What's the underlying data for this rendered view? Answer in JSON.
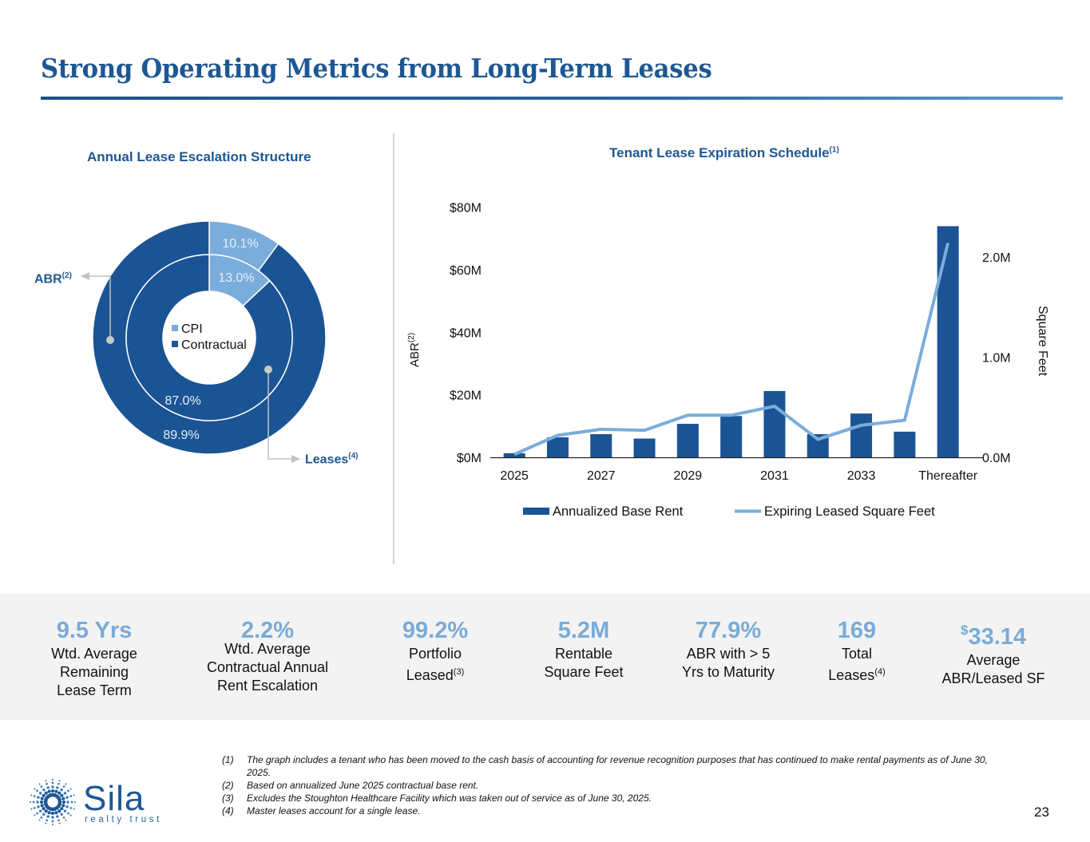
{
  "page": {
    "title": "Strong Operating Metrics from Long-Term Leases",
    "page_number": "23",
    "brand": {
      "name": "Sila",
      "tagline": "realty trust"
    },
    "colors": {
      "primary": "#1d5794",
      "dark_blue": "#1b5494",
      "light_blue": "#7aaddb",
      "kpi_value": "#79abd8",
      "band": "#f3f3f3"
    }
  },
  "donut": {
    "title": "Annual Lease Escalation Structure",
    "legend": [
      {
        "label": "CPI",
        "color": "#7aaddb"
      },
      {
        "label": "Contractual",
        "color": "#1b5494"
      }
    ],
    "callouts": {
      "outer": {
        "label": "ABR",
        "note": "(2)"
      },
      "inner": {
        "label": "Leases",
        "note": "(4)"
      }
    }
  },
  "bar_line": {
    "title": "Tenant Lease Expiration Schedule",
    "title_note": "(1)",
    "ylabel_left": "ABR",
    "ylabel_left_note": "(2)",
    "ylabel_right": "Square Feet"
  },
  "chart_data": [
    {
      "type": "pie",
      "title": "Annual Lease Escalation Structure",
      "rings": [
        {
          "name": "ABR",
          "position": "outer",
          "categories": [
            "CPI",
            "Contractual"
          ],
          "values": [
            10.1,
            89.9
          ],
          "labels": [
            "10.1%",
            "89.9%"
          ]
        },
        {
          "name": "Leases",
          "position": "inner",
          "categories": [
            "CPI",
            "Contractual"
          ],
          "values": [
            13.0,
            87.0
          ],
          "labels": [
            "13.0%",
            "87.0%"
          ]
        }
      ],
      "legend": [
        "CPI",
        "Contractual"
      ],
      "legend_position": "center"
    },
    {
      "type": "bar",
      "title": "Tenant Lease Expiration Schedule",
      "categories": [
        "2025",
        "2026",
        "2027",
        "2028",
        "2029",
        "2030",
        "2031",
        "2032",
        "2033",
        "2034",
        "Thereafter"
      ],
      "tick_labels_x": [
        "2025",
        "2027",
        "2029",
        "2031",
        "2033",
        "Thereafter"
      ],
      "series": [
        {
          "name": "Annualized Base Rent",
          "type": "bar",
          "axis": "left",
          "unit": "$M",
          "color": "#1b5494",
          "values": [
            1.3,
            6.4,
            7.4,
            6.0,
            10.7,
            13.2,
            21.2,
            7.4,
            14.0,
            8.2,
            73.9
          ]
        },
        {
          "name": "Expiring Leased Square Feet",
          "type": "line",
          "axis": "right",
          "unit": "M sq ft",
          "color": "#7aaddb",
          "values": [
            0.03,
            0.22,
            0.28,
            0.27,
            0.42,
            0.42,
            0.51,
            0.18,
            0.32,
            0.37,
            2.14
          ]
        }
      ],
      "y_left": {
        "label": "ABR(2)",
        "range": [
          0,
          80
        ],
        "ticks": [
          0,
          20,
          40,
          60,
          80
        ],
        "tick_labels": [
          "$0M",
          "$20M",
          "$40M",
          "$60M",
          "$80M"
        ]
      },
      "y_right": {
        "label": "Square Feet",
        "range": [
          0,
          2.5
        ],
        "ticks": [
          0,
          1,
          2
        ],
        "tick_labels": [
          "0.0M",
          "1.0M",
          "2.0M"
        ]
      },
      "grid": false,
      "legend": [
        "Annualized Base Rent",
        "Expiring Leased Square Feet"
      ],
      "legend_position": "bottom"
    }
  ],
  "kpis": [
    {
      "value": "9.5 Yrs",
      "lines": [
        "Wtd. Average",
        "Remaining",
        "Lease Term"
      ]
    },
    {
      "value": "2.2%",
      "lines": [
        "Wtd. Average",
        "Contractual Annual",
        "Rent Escalation"
      ]
    },
    {
      "value": "99.2%",
      "lines": [
        "Portfolio",
        "Leased"
      ],
      "note": "(3)"
    },
    {
      "value": "5.2M",
      "lines": [
        "Rentable",
        "Square Feet"
      ]
    },
    {
      "value": "77.9%",
      "lines": [
        "ABR with > 5",
        "Yrs to Maturity"
      ]
    },
    {
      "value": "169",
      "lines": [
        "Total",
        "Leases"
      ],
      "note": "(4)"
    },
    {
      "value_prefix": "$",
      "value": "33.14",
      "lines": [
        "Average",
        "ABR/Leased SF"
      ]
    }
  ],
  "footnotes": [
    {
      "num": "(1)",
      "text": "The graph includes a tenant who has been moved to the cash basis of accounting for revenue recognition purposes that has continued to make rental payments as of June 30, 2025."
    },
    {
      "num": "(2)",
      "text": "Based on annualized June 2025 contractual base rent."
    },
    {
      "num": "(3)",
      "text": "Excludes the Stoughton Healthcare Facility which was taken out of service as of June 30, 2025."
    },
    {
      "num": "(4)",
      "text": "Master leases account for a single lease."
    }
  ]
}
